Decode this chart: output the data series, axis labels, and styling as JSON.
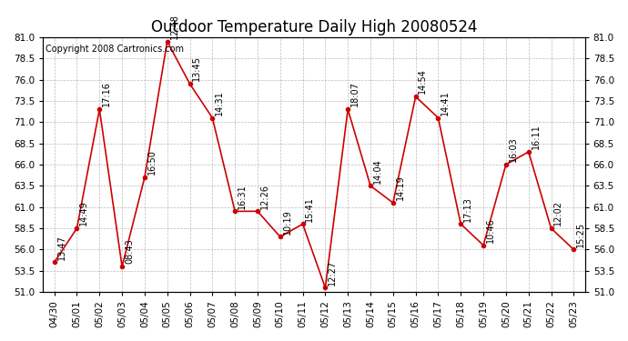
{
  "title": "Outdoor Temperature Daily High 20080524",
  "copyright_text": "Copyright 2008 Cartronics.com",
  "x_labels": [
    "04/30",
    "05/01",
    "05/02",
    "05/03",
    "05/04",
    "05/05",
    "05/06",
    "05/07",
    "05/08",
    "05/09",
    "05/10",
    "05/11",
    "05/12",
    "05/13",
    "05/14",
    "05/15",
    "05/16",
    "05/17",
    "05/18",
    "05/19",
    "05/20",
    "05/21",
    "05/22",
    "05/23"
  ],
  "y_values": [
    54.5,
    58.5,
    72.5,
    54.0,
    64.5,
    80.5,
    75.5,
    71.5,
    60.5,
    60.5,
    57.5,
    59.0,
    51.5,
    72.5,
    63.5,
    61.5,
    74.0,
    71.5,
    59.0,
    56.5,
    66.0,
    67.5,
    58.5,
    56.0
  ],
  "point_labels": [
    "13:47",
    "14:49",
    "17:16",
    "08:43",
    "16:50",
    "12:48",
    "13:45",
    "14:31",
    "16:31",
    "12:26",
    "10:19",
    "15:41",
    "12:27",
    "18:07",
    "14:04",
    "14:19",
    "14:54",
    "14:41",
    "17:13",
    "10:46",
    "16:03",
    "16:11",
    "12:02",
    "15:25"
  ],
  "ylim": [
    51.0,
    81.0
  ],
  "yticks": [
    51.0,
    53.5,
    56.0,
    58.5,
    61.0,
    63.5,
    66.0,
    68.5,
    71.0,
    73.5,
    76.0,
    78.5,
    81.0
  ],
  "line_color": "#cc0000",
  "marker_color": "#cc0000",
  "bg_color": "#ffffff",
  "grid_color": "#aaaaaa",
  "title_fontsize": 12,
  "label_fontsize": 7,
  "tick_fontsize": 7.5,
  "copyright_fontsize": 7
}
